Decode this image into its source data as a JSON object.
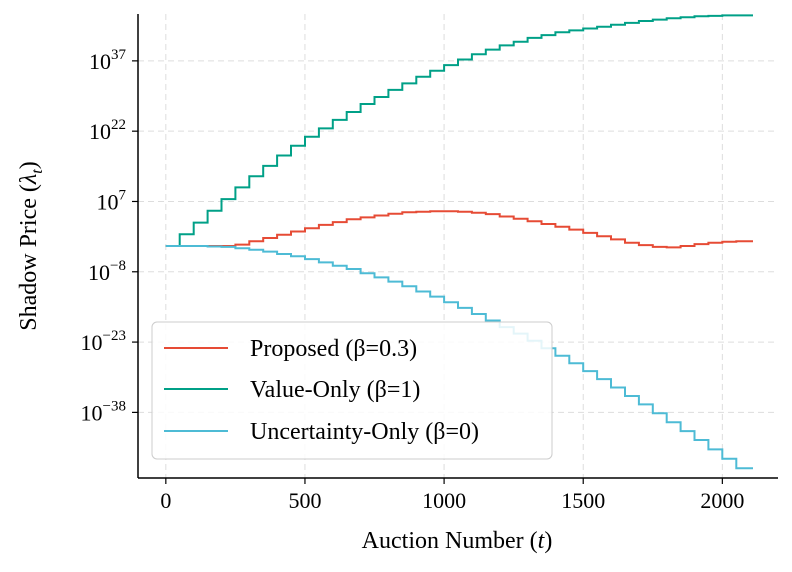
{
  "chart_data": {
    "type": "line",
    "title": "",
    "xlabel": "Auction Number (",
    "xlabel_var": "t",
    "xlabel_close": ")",
    "ylabel": "Shadow Price (",
    "ylabel_var": "λ",
    "ylabel_sub": "t",
    "ylabel_close": ")",
    "yscale": "log10",
    "xlim": [
      -100,
      2200
    ],
    "ylim_log10": [
      -52,
      47
    ],
    "grid": true,
    "legend_position": "lower-left",
    "x_ticks": [
      {
        "value": 0,
        "label": "0"
      },
      {
        "value": 500,
        "label": "500"
      },
      {
        "value": 1000,
        "label": "1000"
      },
      {
        "value": 1500,
        "label": "1500"
      },
      {
        "value": 2000,
        "label": "2000"
      }
    ],
    "y_ticks": [
      {
        "exp": 37,
        "base": "10",
        "sup": "37"
      },
      {
        "exp": 22,
        "base": "10",
        "sup": "22"
      },
      {
        "exp": 7,
        "base": "10",
        "sup": "7"
      },
      {
        "exp": -8,
        "base": "10",
        "sup": "−8"
      },
      {
        "exp": -23,
        "base": "10",
        "sup": "−23"
      },
      {
        "exp": -38,
        "base": "10",
        "sup": "−38"
      }
    ],
    "series": [
      {
        "name": "Proposed (β=0.3)",
        "color": "#e64b35",
        "step": true,
        "x": [
          0,
          50,
          100,
          150,
          200,
          250,
          300,
          350,
          400,
          450,
          500,
          550,
          600,
          650,
          700,
          750,
          800,
          850,
          900,
          950,
          1000,
          1050,
          1100,
          1150,
          1200,
          1250,
          1300,
          1350,
          1400,
          1450,
          1500,
          1550,
          1600,
          1650,
          1700,
          1750,
          1800,
          1850,
          1900,
          1950,
          2000,
          2050,
          2110
        ],
        "y_log10": [
          -2.5,
          -2.5,
          -2.5,
          -2.5,
          -2.5,
          -2.2,
          -1.5,
          -0.8,
          -0.1,
          0.6,
          1.3,
          2.0,
          2.6,
          3.2,
          3.6,
          4.0,
          4.4,
          4.7,
          4.8,
          4.9,
          4.9,
          4.8,
          4.6,
          4.3,
          3.8,
          3.3,
          2.8,
          2.2,
          1.6,
          1.0,
          0.3,
          -0.4,
          -1.1,
          -1.8,
          -2.3,
          -2.7,
          -2.8,
          -2.5,
          -2.1,
          -1.8,
          -1.6,
          -1.5,
          -1.5
        ]
      },
      {
        "name": "Value-Only (β=1)",
        "color": "#00a087",
        "step": true,
        "x": [
          0,
          50,
          100,
          150,
          200,
          250,
          300,
          350,
          400,
          450,
          500,
          550,
          600,
          650,
          700,
          750,
          800,
          850,
          900,
          950,
          1000,
          1050,
          1100,
          1150,
          1200,
          1250,
          1300,
          1350,
          1400,
          1450,
          1500,
          1550,
          1600,
          1650,
          1700,
          1750,
          1800,
          1850,
          1900,
          1950,
          2000,
          2050,
          2110
        ],
        "y_log10": [
          -2.5,
          0,
          2.5,
          5,
          7.5,
          10,
          12.4,
          14.6,
          16.8,
          18.9,
          20.8,
          22.6,
          24.4,
          26.1,
          27.8,
          29.3,
          30.8,
          32.2,
          33.6,
          34.9,
          36.1,
          37.3,
          38.4,
          39.4,
          40.3,
          41.1,
          41.9,
          42.5,
          43.1,
          43.5,
          43.9,
          44.3,
          44.7,
          45.1,
          45.5,
          45.8,
          46.1,
          46.3,
          46.5,
          46.6,
          46.7,
          46.7,
          46.7
        ]
      },
      {
        "name": "Uncertainty-Only (β=0)",
        "color": "#4dbbd5",
        "step": true,
        "x": [
          0,
          50,
          100,
          150,
          200,
          250,
          300,
          350,
          400,
          450,
          500,
          550,
          600,
          650,
          700,
          750,
          800,
          850,
          900,
          950,
          1000,
          1050,
          1100,
          1150,
          1200,
          1250,
          1300,
          1350,
          1400,
          1450,
          1500,
          1550,
          1600,
          1650,
          1700,
          1750,
          1800,
          1850,
          1900,
          1950,
          2000,
          2050,
          2110
        ],
        "y_log10": [
          -2.5,
          -2.5,
          -2.5,
          -2.6,
          -2.7,
          -3.0,
          -3.3,
          -3.7,
          -4.2,
          -4.7,
          -5.3,
          -6.0,
          -6.7,
          -7.4,
          -8.3,
          -9.2,
          -10.1,
          -11.1,
          -12.2,
          -13.3,
          -14.5,
          -15.7,
          -17.0,
          -18.4,
          -19.8,
          -21.2,
          -22.7,
          -24.3,
          -25.9,
          -27.5,
          -29.2,
          -30.9,
          -32.7,
          -34.5,
          -36.3,
          -38.2,
          -40.1,
          -42.0,
          -43.9,
          -45.9,
          -47.9,
          -49.9,
          -49.9
        ]
      }
    ]
  }
}
